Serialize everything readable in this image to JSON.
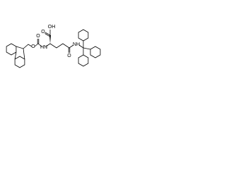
{
  "atoms": [
    {
      "label": "O"
    },
    {
      "label": "O"
    },
    {
      "label": "HN"
    },
    {
      "label": "OH"
    },
    {
      "label": "O"
    },
    {
      "label": "O"
    },
    {
      "label": "NH"
    }
  ]
}
